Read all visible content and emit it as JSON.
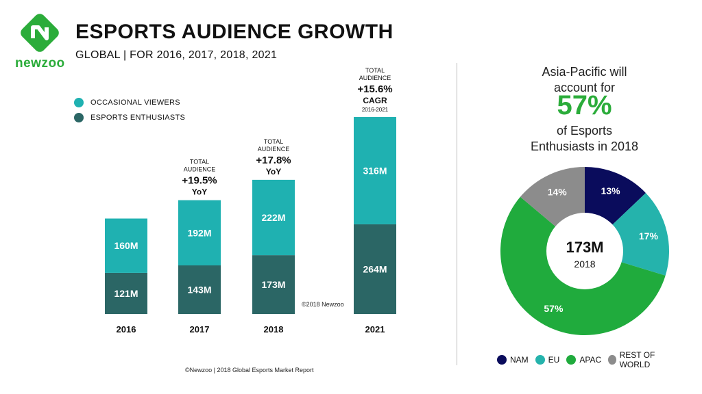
{
  "header": {
    "logo_text": "newzoo",
    "title": "ESPORTS AUDIENCE GROWTH",
    "subtitle": "GLOBAL | FOR 2016, 2017, 2018, 2021"
  },
  "colors": {
    "occasional": "#1fb1b1",
    "enthusiasts": "#2b6665",
    "brand_green": "#2bac3a",
    "nam": "#0a0c5c",
    "eu": "#25b3ac",
    "apac": "#20ab3d",
    "row": "#8c8c8c"
  },
  "credit": "©2018 Newzoo",
  "footer": "©Newzoo | 2018 Global Esports Market Report",
  "pie_caption": {
    "line1": "Asia-Pacific will",
    "line2": "account for",
    "big": "57%",
    "line3": "of Esports",
    "line4": "Enthusiasts in 2018"
  },
  "chart_data": [
    {
      "type": "bar",
      "stacked": true,
      "categories": [
        "2016",
        "2017",
        "2018",
        "2021"
      ],
      "series": [
        {
          "name": "ESPORTS ENTHUSIASTS",
          "values": [
            121,
            143,
            173,
            264
          ],
          "labels": [
            "121M",
            "143M",
            "173M",
            "264M"
          ]
        },
        {
          "name": "OCCASIONAL VIEWERS",
          "values": [
            160,
            192,
            222,
            316
          ],
          "labels": [
            "160M",
            "192M",
            "222M",
            "316M"
          ]
        }
      ],
      "legend": [
        "OCCASIONAL VIEWERS",
        "ESPORTS ENTHUSIASTS"
      ],
      "annotations": [
        {
          "category": "2017",
          "lines": [
            "TOTAL",
            "AUDIENCE",
            "+19.5%",
            "YoY"
          ]
        },
        {
          "category": "2018",
          "lines": [
            "TOTAL",
            "AUDIENCE",
            "+17.8%",
            "YoY"
          ]
        },
        {
          "category": "2021",
          "lines": [
            "TOTAL",
            "AUDIENCE",
            "+15.6%",
            "CAGR",
            "2016-2021"
          ]
        }
      ]
    },
    {
      "type": "pie",
      "donut": true,
      "center_value": "173M",
      "center_label": "2018",
      "slices": [
        {
          "name": "NAM",
          "value": 13,
          "label": "13%"
        },
        {
          "name": "EU",
          "value": 17,
          "label": "17%"
        },
        {
          "name": "APAC",
          "value": 57,
          "label": "57%"
        },
        {
          "name": "REST OF WORLD",
          "value": 14,
          "label": "14%"
        }
      ]
    }
  ]
}
